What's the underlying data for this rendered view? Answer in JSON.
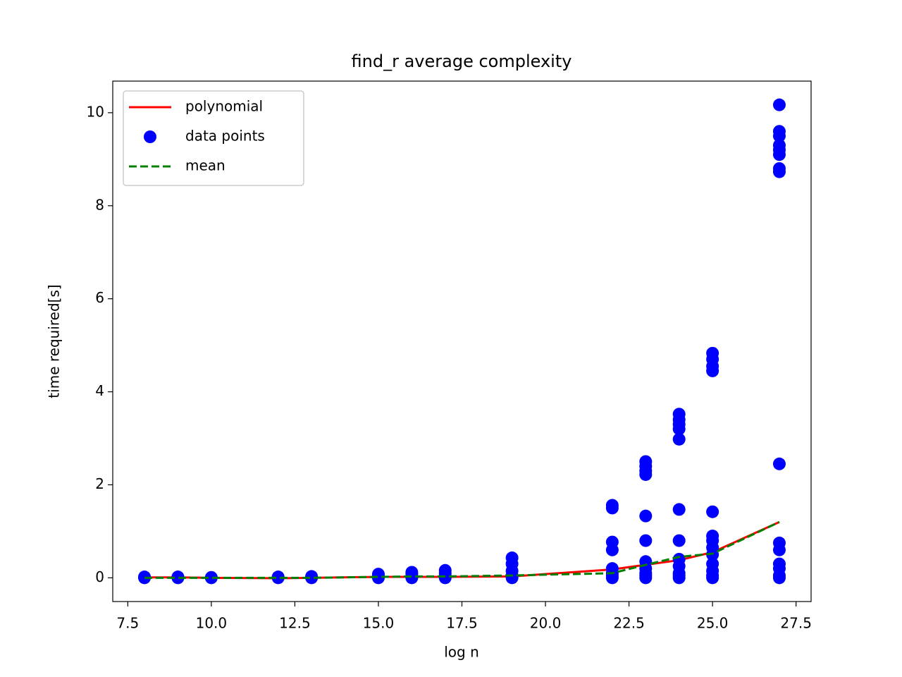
{
  "chart_data": {
    "type": "line",
    "title": "find_r average complexity",
    "x_label": "log n",
    "y_label": "time required[s]",
    "xlim": [
      7.05,
      27.95
    ],
    "ylim": [
      -0.51,
      10.68
    ],
    "xticks": [
      7.5,
      {
        "value": 10,
        "label": "10.0"
      },
      12.5,
      {
        "value": 15,
        "label": "15.0"
      },
      17.5,
      {
        "value": 20,
        "label": "20.0"
      },
      22.5,
      {
        "value": 25,
        "label": "25.0"
      },
      27.5
    ],
    "yticks": [
      0,
      2,
      4,
      6,
      8,
      10
    ],
    "legend": "upper left",
    "series": [
      {
        "name": "polynomial",
        "color": "#ff0000",
        "style": "solid",
        "x": [
          8,
          9,
          10,
          12,
          13,
          15,
          16,
          17,
          19,
          22,
          23,
          24,
          25,
          27
        ],
        "values": [
          0.01,
          0.01,
          0,
          -0.01,
          0,
          0.02,
          0.02,
          0.02,
          0.03,
          0.18,
          0.28,
          0.38,
          0.55,
          1.2
        ]
      },
      {
        "name": "data points",
        "color": "#0000ff",
        "style": "marker",
        "x": [
          8,
          8,
          8,
          9,
          9,
          9,
          10,
          10,
          12,
          12,
          12,
          13,
          13,
          13,
          15,
          15,
          15,
          15,
          16,
          16,
          16,
          16,
          17,
          17,
          17,
          17,
          19,
          19,
          19,
          19,
          19,
          22,
          22,
          22,
          22,
          22,
          22,
          22,
          22,
          23,
          23,
          23,
          23,
          23,
          23,
          23,
          23,
          23,
          23,
          23,
          24,
          24,
          24,
          24,
          24,
          24,
          24,
          24,
          24,
          24,
          24,
          24,
          25,
          25,
          25,
          25,
          25,
          25,
          25,
          25,
          25,
          25,
          25,
          25,
          25,
          27,
          27,
          27,
          27,
          27,
          27,
          27,
          27,
          27,
          27,
          27,
          27,
          27,
          27,
          27
        ],
        "values": [
          0,
          0.01,
          0.02,
          0,
          0.01,
          0.02,
          0,
          0.01,
          0,
          0.01,
          0.02,
          0,
          0.01,
          0.03,
          0,
          0.02,
          0.05,
          0.08,
          0,
          0.03,
          0.08,
          0.12,
          0,
          0.04,
          0.1,
          0.16,
          0,
          0.05,
          0.15,
          0.3,
          0.43,
          0,
          0.05,
          0.1,
          0.2,
          0.6,
          0.77,
          1.5,
          1.56,
          0,
          0.05,
          0.1,
          0.2,
          0.35,
          0.8,
          1.33,
          2.22,
          2.3,
          2.4,
          2.5,
          0,
          0.05,
          0.1,
          0.25,
          0.4,
          0.8,
          1.47,
          2.98,
          3.2,
          3.3,
          3.4,
          3.52,
          0,
          0.05,
          0.15,
          0.3,
          0.5,
          0.65,
          0.8,
          0.9,
          1.42,
          4.45,
          4.55,
          4.7,
          4.83,
          0,
          0.05,
          0.2,
          0.3,
          0.6,
          0.75,
          2.45,
          8.73,
          8.8,
          9.1,
          9.2,
          9.3,
          9.5,
          9.6,
          10.17
        ]
      },
      {
        "name": "mean",
        "color": "#008000",
        "style": "dashed",
        "x": [
          8,
          9,
          10,
          12,
          13,
          15,
          16,
          17,
          19,
          22,
          23,
          24,
          25,
          27
        ],
        "values": [
          0,
          0,
          0,
          0,
          0,
          0.02,
          0.03,
          0.03,
          0.05,
          0.1,
          0.28,
          0.45,
          0.52,
          1.2
        ]
      }
    ]
  }
}
